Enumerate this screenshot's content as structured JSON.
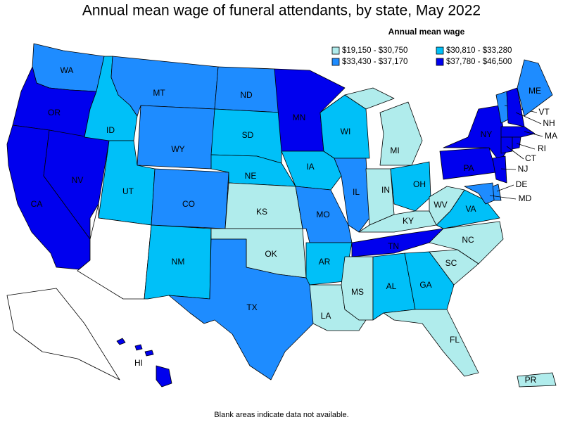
{
  "title": "Annual mean wage of funeral attendants, by state, May 2022",
  "legend": {
    "title": "Annual mean wage",
    "classes": [
      {
        "label": "$19,150 - $30,750",
        "color": "#b0ecec"
      },
      {
        "label": "$30,810 - $33,280",
        "color": "#00c0f8"
      },
      {
        "label": "$33,430 - $37,170",
        "color": "#1e8cff"
      },
      {
        "label": "$37,780 - $46,500",
        "color": "#0000ee"
      }
    ],
    "blank_color": "#ffffff"
  },
  "states": [
    {
      "label": "WA",
      "class": 2
    },
    {
      "label": "OR",
      "class": 3
    },
    {
      "label": "CA",
      "class": 3
    },
    {
      "label": "NV",
      "class": 3
    },
    {
      "label": "ID",
      "class": 1
    },
    {
      "label": "MT",
      "class": 2
    },
    {
      "label": "WY",
      "class": 2
    },
    {
      "label": "UT",
      "class": 1
    },
    {
      "label": null,
      "class": null
    },
    {
      "label": "CO",
      "class": 2
    },
    {
      "label": "NM",
      "class": 1
    },
    {
      "label": "ND",
      "class": 2
    },
    {
      "label": "SD",
      "class": 1
    },
    {
      "label": "NE",
      "class": 1
    },
    {
      "label": "KS",
      "class": 0
    },
    {
      "label": "OK",
      "class": 0
    },
    {
      "label": "TX",
      "class": 2
    },
    {
      "label": "MN",
      "class": 3
    },
    {
      "label": "IA",
      "class": 1
    },
    {
      "label": "MO",
      "class": 2
    },
    {
      "label": "AR",
      "class": 1
    },
    {
      "label": "LA",
      "class": 0
    },
    {
      "label": "WI",
      "class": 1
    },
    {
      "label": "IL",
      "class": 2
    },
    {
      "label": "MI",
      "class": 0
    },
    {
      "label": "IN",
      "class": 0
    },
    {
      "label": "OH",
      "class": 1
    },
    {
      "label": "KY",
      "class": 0
    },
    {
      "label": "TN",
      "class": 3
    },
    {
      "label": "MS",
      "class": 0
    },
    {
      "label": "AL",
      "class": 1
    },
    {
      "label": "GA",
      "class": 1
    },
    {
      "label": "FL",
      "class": 0
    },
    {
      "label": "SC",
      "class": 0
    },
    {
      "label": "NC",
      "class": 0
    },
    {
      "label": "VA",
      "class": 1
    },
    {
      "label": "WV",
      "class": 0
    },
    {
      "label": "PA",
      "class": 3
    },
    {
      "label": "NY",
      "class": 3
    },
    {
      "label": "VT",
      "class": 2
    },
    {
      "label": "NH",
      "class": 3
    },
    {
      "label": "ME",
      "class": 2
    },
    {
      "label": "MA",
      "class": 3
    },
    {
      "label": "CT",
      "class": 3
    },
    {
      "label": "RI",
      "class": 3
    },
    {
      "label": "NJ",
      "class": 3
    },
    {
      "label": "DE",
      "class": 2
    },
    {
      "label": "MD",
      "class": 2
    },
    {
      "label": null,
      "class": null
    },
    {
      "label": "HI",
      "class": 3
    },
    {
      "label": "PR",
      "class": 0
    }
  ],
  "note": "Blank areas indicate data not available."
}
